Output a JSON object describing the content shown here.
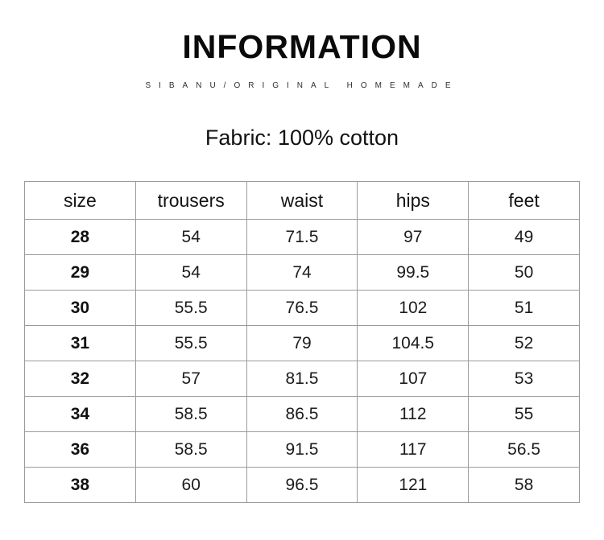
{
  "header": {
    "title": "INFORMATION",
    "subtitle": "SIBANU/ORIGINAL HOMEMADE",
    "fabric_note": "Fabric: 100% cotton"
  },
  "size_table": {
    "columns": [
      "size",
      "trousers",
      "waist",
      "hips",
      "feet"
    ],
    "rows": [
      [
        "28",
        "54",
        "71.5",
        "97",
        "49"
      ],
      [
        "29",
        "54",
        "74",
        "99.5",
        "50"
      ],
      [
        "30",
        "55.5",
        "76.5",
        "102",
        "51"
      ],
      [
        "31",
        "55.5",
        "79",
        "104.5",
        "52"
      ],
      [
        "32",
        "57",
        "81.5",
        "107",
        "53"
      ],
      [
        "34",
        "58.5",
        "86.5",
        "112",
        "55"
      ],
      [
        "36",
        "58.5",
        "91.5",
        "117",
        "56.5"
      ],
      [
        "38",
        "60",
        "96.5",
        "121",
        "58"
      ]
    ]
  },
  "colors": {
    "background": "#ffffff",
    "text": "#1c1c1c",
    "table_border": "#9b9b9b"
  }
}
